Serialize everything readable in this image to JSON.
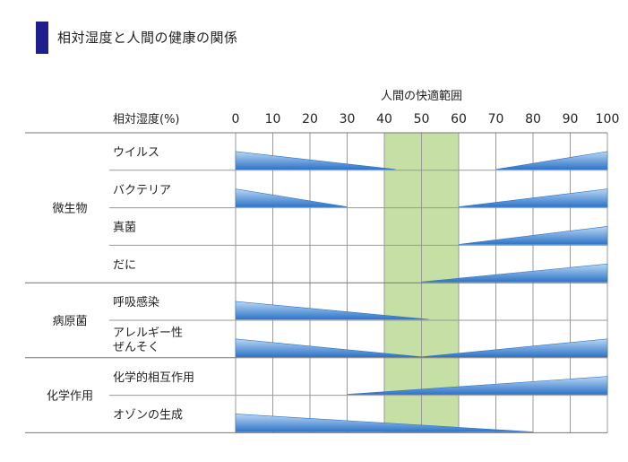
{
  "page": {
    "title": "相対湿度と人間の健康の関係",
    "accent_color": "#1e1e8c"
  },
  "chart_data": {
    "type": "table",
    "comfort_label": "人間の快適範囲",
    "scale_label": "相対湿度(%)",
    "ticks": [
      0,
      10,
      20,
      30,
      40,
      50,
      60,
      70,
      80,
      90,
      100
    ],
    "xlim": [
      0,
      100
    ],
    "comfort_range": [
      40,
      60
    ],
    "colors": {
      "comfort": "#c6dfa4",
      "wedge_dark": "#2f75c8",
      "wedge_light": "#b9d7f4"
    },
    "groups": [
      {
        "name": "微生物",
        "rows": [
          {
            "label": "ウイルス",
            "ranges": [
              {
                "from": 0,
                "to": 43,
                "high": "left"
              },
              {
                "from": 70,
                "to": 100,
                "high": "right"
              }
            ]
          },
          {
            "label": "バクテリア",
            "ranges": [
              {
                "from": 0,
                "to": 30,
                "high": "left"
              },
              {
                "from": 60,
                "to": 100,
                "high": "right"
              }
            ]
          },
          {
            "label": "真菌",
            "ranges": [
              {
                "from": 60,
                "to": 100,
                "high": "right"
              }
            ]
          },
          {
            "label": "だに",
            "ranges": [
              {
                "from": 50,
                "to": 100,
                "high": "right"
              }
            ]
          }
        ]
      },
      {
        "name": "病原菌",
        "rows": [
          {
            "label": "呼吸感染",
            "ranges": [
              {
                "from": 0,
                "to": 52,
                "high": "left"
              }
            ]
          },
          {
            "label": "アレルギー性\nぜんそく",
            "ranges": [
              {
                "from": 0,
                "to": 50,
                "high": "left"
              },
              {
                "from": 50,
                "to": 100,
                "high": "right"
              }
            ]
          }
        ]
      },
      {
        "name": "化学作用",
        "rows": [
          {
            "label": "化学的相互作用",
            "ranges": [
              {
                "from": 30,
                "to": 100,
                "high": "right"
              }
            ]
          },
          {
            "label": "オゾンの生成",
            "ranges": [
              {
                "from": 0,
                "to": 80,
                "high": "left"
              }
            ]
          }
        ]
      }
    ]
  }
}
